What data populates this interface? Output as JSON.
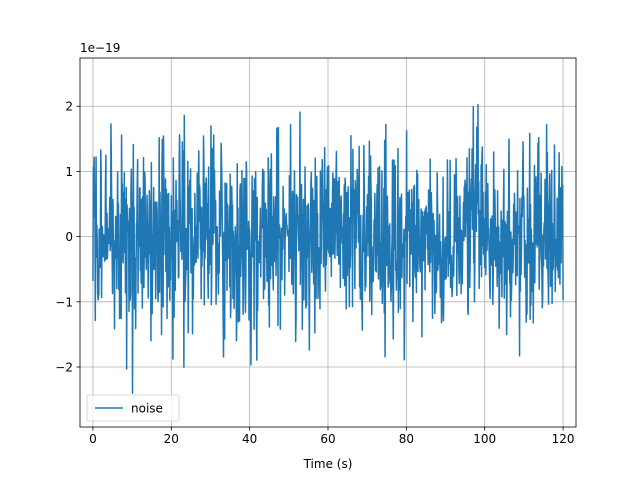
{
  "chart_data": {
    "type": "line",
    "title": "",
    "xlabel": "Time (s)",
    "ylabel": "",
    "y_scale_label": "1e−19",
    "y_scale": 1e-19,
    "xlim": [
      -3.3,
      123.3
    ],
    "ylim": [
      -2.92,
      2.74
    ],
    "x_ticks": [
      0,
      20,
      40,
      60,
      80,
      100,
      120
    ],
    "x_tick_labels": [
      "0",
      "20",
      "40",
      "60",
      "80",
      "100",
      "120"
    ],
    "y_ticks": [
      -2,
      -1,
      0,
      1,
      2
    ],
    "y_tick_labels": [
      "−2",
      "−1",
      "0",
      "1",
      "2"
    ],
    "grid": true,
    "legend_placement": "lower-left",
    "x_range": [
      0,
      120
    ],
    "sample_count": 1200,
    "series": [
      {
        "name": "noise",
        "color": "#1f77b4",
        "kind": "random noise",
        "std": 0.75,
        "min": -2.65,
        "max": 2.48
      }
    ]
  }
}
